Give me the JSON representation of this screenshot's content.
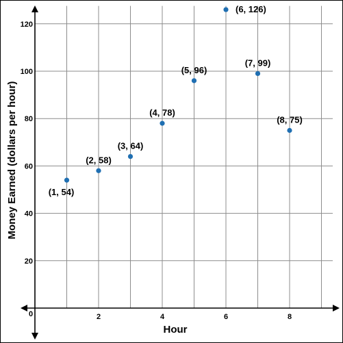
{
  "chart_data": {
    "type": "scatter",
    "title": "",
    "xlabel": "Hour",
    "ylabel": "Money Earned (dollars per hour)",
    "xlim": [
      0,
      9.3
    ],
    "ylim": [
      0,
      127
    ],
    "grid": true,
    "origin_label": "0",
    "x_ticks": [
      2,
      4,
      6,
      8
    ],
    "x_tick_labels": [
      "2",
      "4",
      "6",
      "8"
    ],
    "y_ticks": [
      20,
      40,
      60,
      80,
      100,
      120
    ],
    "y_tick_labels": [
      "20",
      "40",
      "60",
      "80",
      "100",
      "120"
    ],
    "point_color": "#1f6fb2",
    "points": [
      {
        "x": 1,
        "y": 54,
        "label": "(1, 54)"
      },
      {
        "x": 2,
        "y": 58,
        "label": "(2, 58)"
      },
      {
        "x": 3,
        "y": 64,
        "label": "(3, 64)"
      },
      {
        "x": 4,
        "y": 78,
        "label": "(4, 78)"
      },
      {
        "x": 5,
        "y": 96,
        "label": "(5, 96)"
      },
      {
        "x": 6,
        "y": 126,
        "label": "(6, 126)"
      },
      {
        "x": 7,
        "y": 99,
        "label": "(7, 99)"
      },
      {
        "x": 8,
        "y": 75,
        "label": "(8, 75)"
      }
    ]
  }
}
